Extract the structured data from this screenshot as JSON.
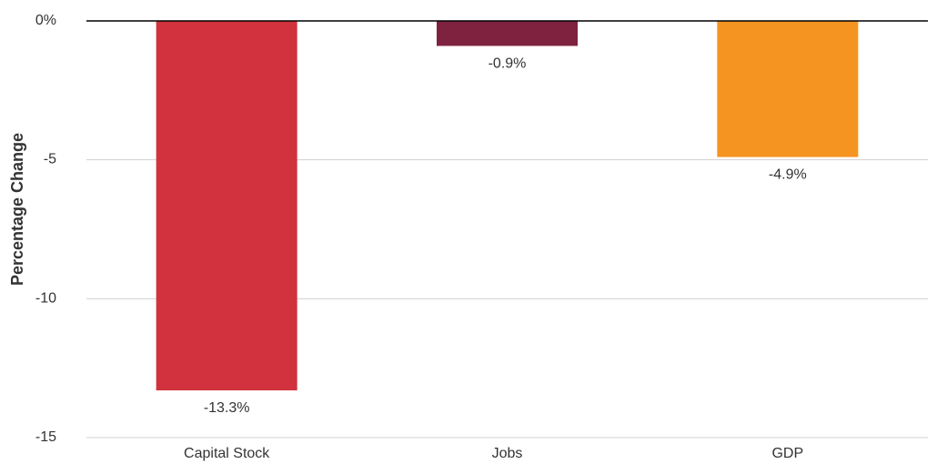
{
  "chart_data": {
    "type": "bar",
    "categories": [
      "Capital Stock",
      "Jobs",
      "GDP"
    ],
    "values": [
      -13.3,
      -0.9,
      -4.9
    ],
    "data_labels": [
      "-13.3%",
      "-0.9%",
      "-4.9%"
    ],
    "colors": [
      "#d1323d",
      "#7e2240",
      "#f59421"
    ],
    "ylabel": "Percentage Change",
    "ylim": [
      -15,
      0
    ],
    "y_ticks": [
      {
        "value": 0,
        "label": "0%"
      },
      {
        "value": -5,
        "label": "-5"
      },
      {
        "value": -10,
        "label": "-10"
      },
      {
        "value": -15,
        "label": "-15"
      }
    ],
    "grid": true
  }
}
